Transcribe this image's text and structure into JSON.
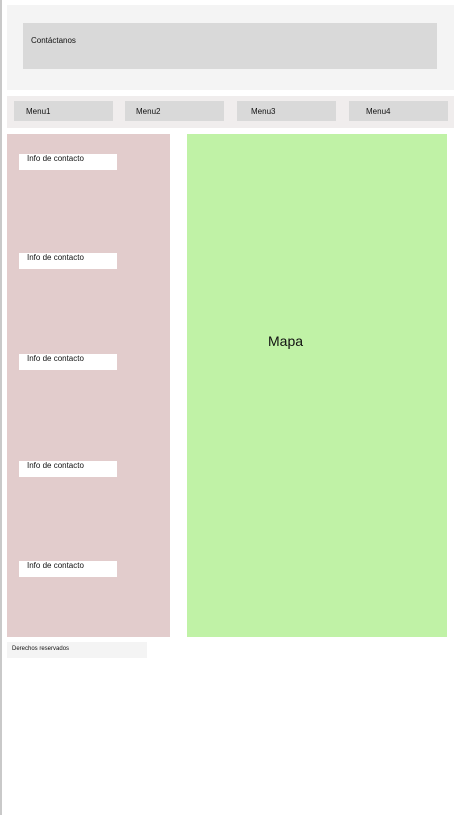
{
  "header": {
    "title": "Contáctanos"
  },
  "nav": {
    "items": [
      {
        "label": "Menu1"
      },
      {
        "label": "Menu2"
      },
      {
        "label": "Menu3"
      },
      {
        "label": "Menu4"
      }
    ]
  },
  "contacts": {
    "items": [
      {
        "label": "Info de contacto"
      },
      {
        "label": "Info de contacto"
      },
      {
        "label": "Info de contacto"
      },
      {
        "label": "Info de contacto"
      },
      {
        "label": "Info de contacto"
      }
    ]
  },
  "map": {
    "label": "Mapa"
  },
  "footer": {
    "text": "Derechos reservados"
  },
  "colors": {
    "header_band": "#f4f4f4",
    "title_box": "#d9d9d9",
    "nav_band": "#f0eded",
    "contact_column": "#e2cccc",
    "map_area": "#c0f2a6"
  }
}
